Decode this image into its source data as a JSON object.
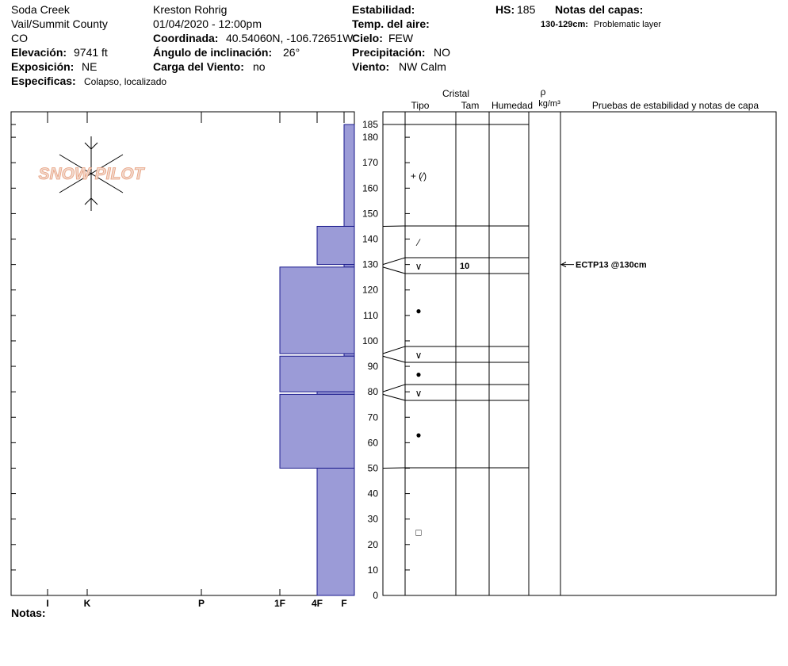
{
  "header": {
    "location": "Soda Creek",
    "region": "Vail/Summit County",
    "state": "CO",
    "observer": "Kreston Rohrig",
    "datetime": "01/04/2020 - 12:00pm",
    "elevation_label": "Elevación:",
    "elevation": "9741 ft",
    "aspect_label": "Exposición:",
    "aspect": "NE",
    "specifics_label": "Especificas:",
    "specifics": "Colapso, localizado",
    "coords_label": "Coordinada:",
    "coords": "40.54060N, -106.72651W",
    "slope_label": "Ángulo de inclinación:",
    "slope": "26°",
    "wind_load_label": "Carga del Viento:",
    "wind_load": "no",
    "stability_label": "Estabilidad:",
    "air_temp_label": "Temp. del aire:",
    "sky_label": "Cielo:",
    "sky": "FEW",
    "precip_label": "Precipitación:",
    "precip": "NO",
    "wind_label": "Viento:",
    "wind": "NW Calm",
    "hs_label": "HS:",
    "hs": 185,
    "layer_notes_label": "Notas del capas:",
    "layer_note_range": "130-129cm:",
    "layer_note": "Problematic layer",
    "logo": "SNOW PILOT",
    "notes_label": "Notas:"
  },
  "table": {
    "crystal": "Cristal",
    "type": "Tipo",
    "size": "Tam",
    "moisture": "Humedad",
    "rho": "ρ",
    "density_unit": "kg/m³",
    "tests": "Pruebas de estabilidad y notas de capa"
  },
  "chart_data": {
    "type": "snow-profile",
    "ylim": [
      0,
      190
    ],
    "yticks": [
      0,
      10,
      20,
      30,
      40,
      50,
      60,
      70,
      80,
      90,
      100,
      110,
      120,
      130,
      140,
      150,
      160,
      170,
      180,
      185
    ],
    "hardness_scale": [
      "I",
      "K",
      "P",
      "1F",
      "4F",
      "F"
    ],
    "color": "#9b9bd7",
    "layers": [
      {
        "top": 185,
        "bottom": 145,
        "hardness": "F",
        "grain": "+ (⁄)"
      },
      {
        "top": 145,
        "bottom": 130,
        "hardness": "4F",
        "grain": "⁄"
      },
      {
        "top": 130,
        "bottom": 129,
        "hardness": "F",
        "grain": "∨",
        "size": 10
      },
      {
        "top": 129,
        "bottom": 95,
        "hardness": "1F",
        "grain": "●"
      },
      {
        "top": 95,
        "bottom": 94,
        "hardness": "F",
        "grain": "∨"
      },
      {
        "top": 94,
        "bottom": 80,
        "hardness": "1F",
        "grain": "●"
      },
      {
        "top": 80,
        "bottom": 79,
        "hardness": "4F",
        "grain": "∨"
      },
      {
        "top": 79,
        "bottom": 50,
        "hardness": "1F",
        "grain": "●"
      },
      {
        "top": 50,
        "bottom": 0,
        "hardness": "4F",
        "grain": "□"
      }
    ],
    "tests": [
      {
        "depth": 130,
        "label": "ECTP13 @130cm"
      }
    ]
  }
}
